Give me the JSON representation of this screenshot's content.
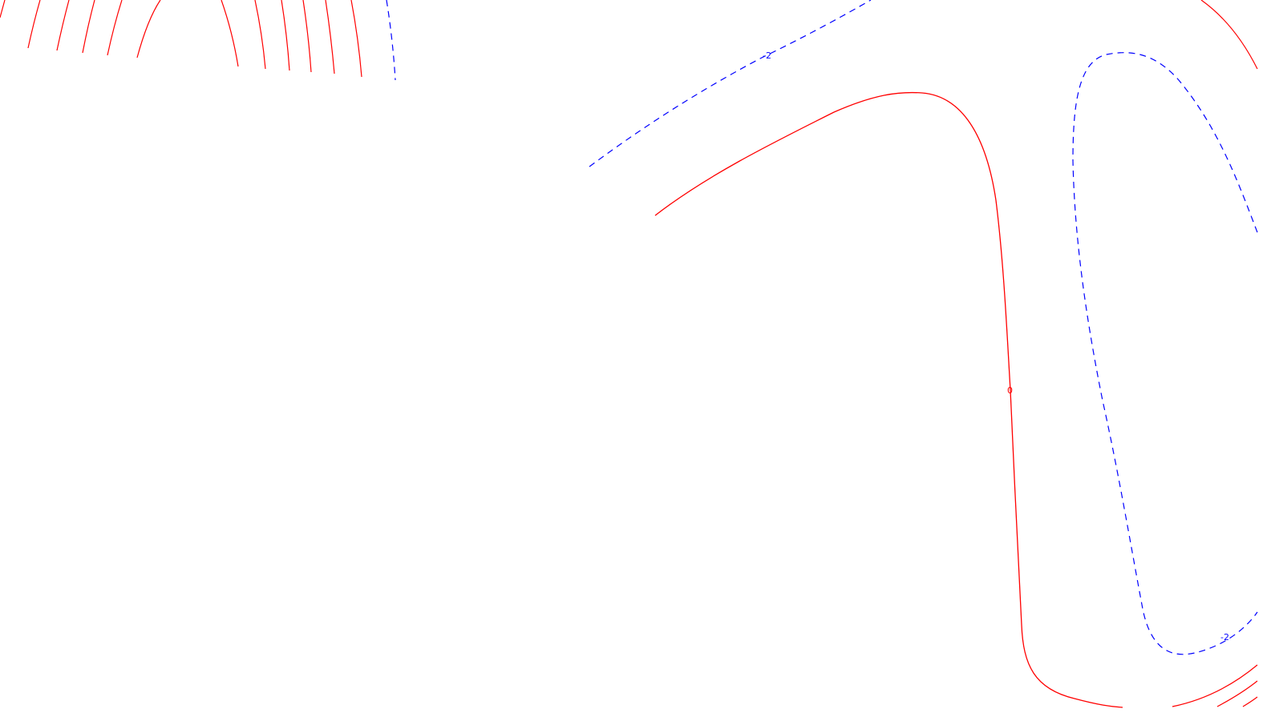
{
  "colors": {
    "background": "#ffffff",
    "positive_contour": "#ff0000",
    "negative_contour": "#0000ff"
  },
  "contour_labels": {
    "zero_level": "0",
    "negative_level_top": "-2",
    "negative_level_bottom_right": "-2"
  },
  "line_styles": {
    "positive": "solid",
    "negative": "dashed"
  }
}
